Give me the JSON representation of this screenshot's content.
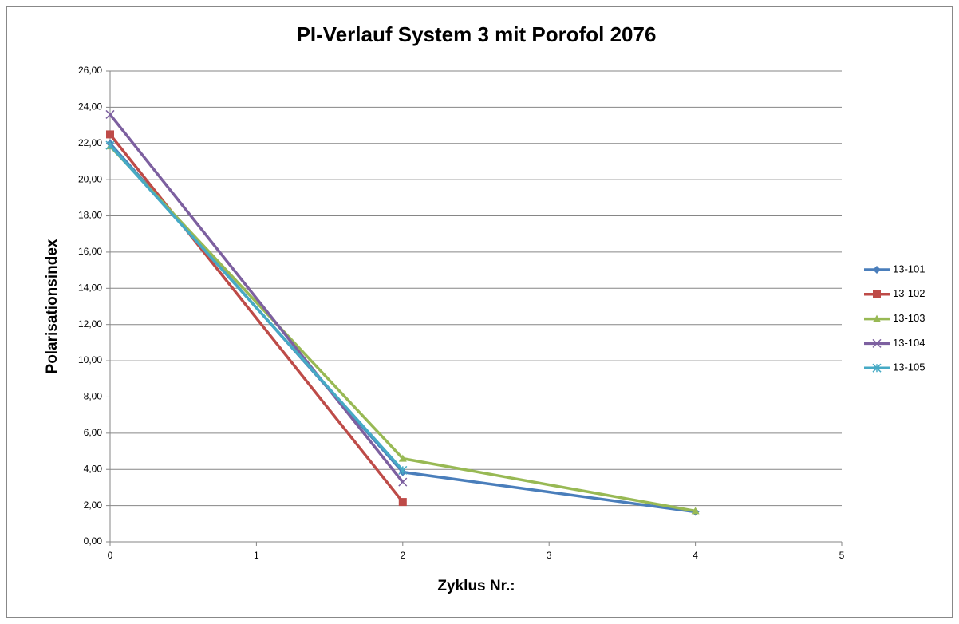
{
  "chart_data": {
    "type": "line",
    "title": "PI-Verlauf System 3 mit Porofol 2076",
    "x_label": "Zyklus Nr.:",
    "y_label": "Polarisationsindex",
    "x": [
      0,
      2,
      4
    ],
    "series": [
      {
        "name": "13-101",
        "color": "#4a7ebb",
        "marker": "diamond",
        "values": [
          22.0,
          3.85,
          1.65
        ]
      },
      {
        "name": "13-102",
        "color": "#be4b48",
        "marker": "square",
        "values": [
          22.5,
          2.2,
          null
        ]
      },
      {
        "name": "13-103",
        "color": "#98b954",
        "marker": "triangle",
        "values": [
          21.85,
          4.6,
          1.7
        ]
      },
      {
        "name": "13-104",
        "color": "#7d60a0",
        "marker": "x",
        "values": [
          23.6,
          3.3,
          null
        ]
      },
      {
        "name": "13-105",
        "color": "#46aac5",
        "marker": "star",
        "values": [
          21.9,
          3.95,
          null
        ]
      }
    ],
    "xlim": [
      0,
      5
    ],
    "xticks": [
      0,
      1,
      2,
      3,
      4,
      5
    ],
    "ylim": [
      0,
      26
    ],
    "yticks": [
      {
        "value": 0,
        "label": "0,00"
      },
      {
        "value": 2,
        "label": "2,00"
      },
      {
        "value": 4,
        "label": "4,00"
      },
      {
        "value": 6,
        "label": "6,00"
      },
      {
        "value": 8,
        "label": "8,00"
      },
      {
        "value": 10,
        "label": "10,00"
      },
      {
        "value": 12,
        "label": "12,00"
      },
      {
        "value": 14,
        "label": "14,00"
      },
      {
        "value": 16,
        "label": "16,00"
      },
      {
        "value": 18,
        "label": "18,00"
      },
      {
        "value": 20,
        "label": "20,00"
      },
      {
        "value": 22,
        "label": "22,00"
      },
      {
        "value": 24,
        "label": "24,00"
      },
      {
        "value": 26,
        "label": "26,00"
      }
    ],
    "grid": true,
    "legend": "right"
  }
}
